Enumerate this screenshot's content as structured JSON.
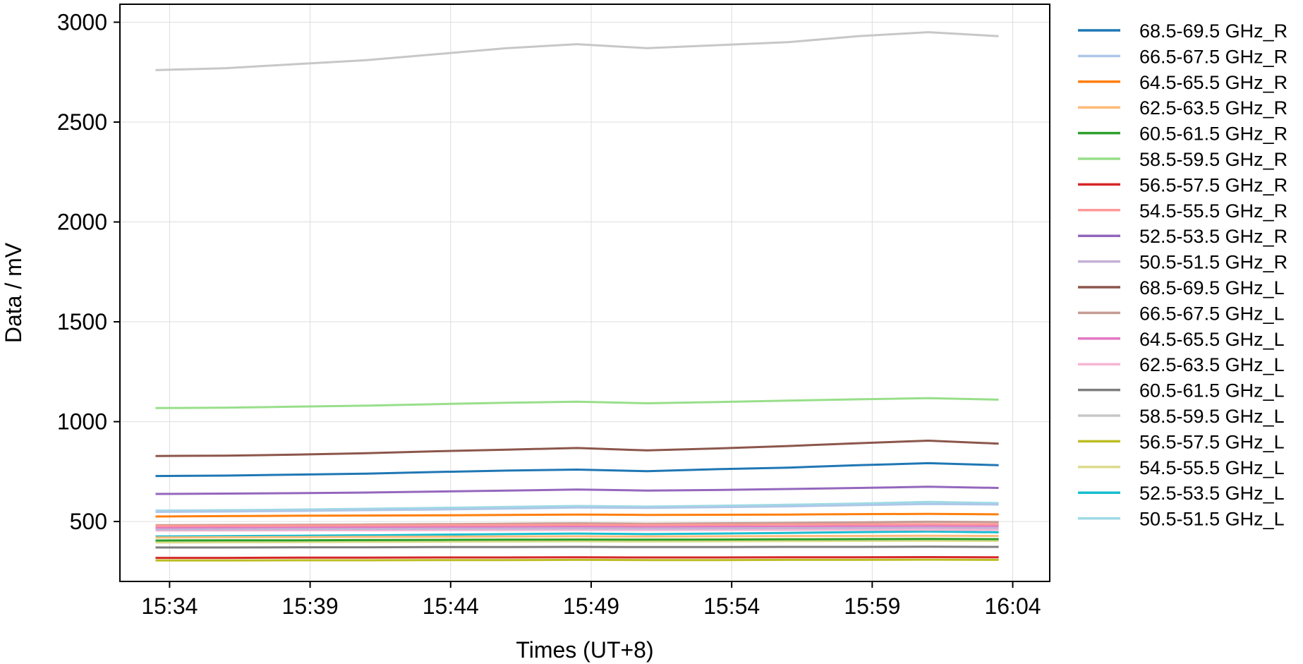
{
  "chart_data": {
    "type": "line",
    "title": "",
    "xlabel": "Times (UT+8)",
    "ylabel": "Data / mV",
    "x_tick_labels": [
      "15:34",
      "15:39",
      "15:44",
      "15:49",
      "15:54",
      "15:59",
      "16:04"
    ],
    "x_range_minutes": [
      "15:32:14",
      "16:05:19"
    ],
    "y_ticks": [
      500,
      1000,
      1500,
      2000,
      2500,
      3000
    ],
    "ylim": [
      200,
      3090
    ],
    "grid": true,
    "legend_position": "outside-right",
    "x": [
      "15:33:30",
      "15:36:00",
      "15:38:30",
      "15:41:00",
      "15:43:30",
      "15:46:00",
      "15:48:30",
      "15:51:00",
      "15:53:30",
      "15:56:00",
      "15:58:30",
      "16:01:00",
      "16:03:30"
    ],
    "series": [
      {
        "name": "68.5-69.5 GHz_R",
        "color": "#1f77b4",
        "values": [
          728,
          730,
          735,
          740,
          748,
          755,
          760,
          752,
          762,
          770,
          782,
          792,
          782
        ]
      },
      {
        "name": "66.5-67.5 GHz_R",
        "color": "#aec7e8",
        "values": [
          548,
          550,
          553,
          557,
          560,
          565,
          570,
          568,
          572,
          576,
          582,
          588,
          585
        ]
      },
      {
        "name": "64.5-65.5 GHz_R",
        "color": "#ff7f0e",
        "values": [
          525,
          527,
          529,
          530,
          531,
          533,
          535,
          533,
          534,
          535,
          537,
          538,
          536
        ]
      },
      {
        "name": "62.5-63.5 GHz_R",
        "color": "#ffbb78",
        "values": [
          420,
          421,
          422,
          423,
          424,
          425,
          426,
          425,
          426,
          427,
          428,
          429,
          428
        ]
      },
      {
        "name": "60.5-61.5 GHz_R",
        "color": "#2ca02c",
        "values": [
          405,
          406,
          406,
          407,
          408,
          409,
          410,
          409,
          410,
          411,
          412,
          413,
          412
        ]
      },
      {
        "name": "58.5-59.5 GHz_R",
        "color": "#98df8a",
        "values": [
          1068,
          1070,
          1075,
          1080,
          1088,
          1095,
          1100,
          1092,
          1098,
          1105,
          1112,
          1118,
          1110
        ]
      },
      {
        "name": "56.5-57.5 GHz_R",
        "color": "#d62728",
        "values": [
          318,
          318,
          319,
          319,
          320,
          320,
          321,
          320,
          320,
          321,
          321,
          322,
          321
        ]
      },
      {
        "name": "54.5-55.5 GHz_R",
        "color": "#ff9896",
        "values": [
          478,
          479,
          480,
          481,
          482,
          483,
          484,
          483,
          484,
          485,
          486,
          487,
          486
        ]
      },
      {
        "name": "52.5-53.5 GHz_R",
        "color": "#9467bd",
        "values": [
          638,
          640,
          642,
          645,
          650,
          655,
          660,
          655,
          658,
          663,
          668,
          674,
          668
        ]
      },
      {
        "name": "50.5-51.5 GHz_R",
        "color": "#c5b0d5",
        "values": [
          460,
          461,
          462,
          463,
          464,
          465,
          466,
          465,
          466,
          467,
          468,
          469,
          468
        ]
      },
      {
        "name": "68.5-69.5 GHz_L",
        "color": "#8c564b",
        "values": [
          828,
          830,
          835,
          842,
          852,
          860,
          868,
          856,
          866,
          878,
          892,
          905,
          890
        ]
      },
      {
        "name": "66.5-67.5 GHz_L",
        "color": "#c49c94",
        "values": [
          482,
          483,
          484,
          485,
          487,
          489,
          491,
          489,
          491,
          493,
          496,
          499,
          497
        ]
      },
      {
        "name": "64.5-65.5 GHz_L",
        "color": "#e377c2",
        "values": [
          468,
          469,
          470,
          471,
          472,
          473,
          474,
          473,
          474,
          475,
          476,
          477,
          476
        ]
      },
      {
        "name": "62.5-63.5 GHz_L",
        "color": "#f7b6d2",
        "values": [
          455,
          455,
          456,
          456,
          457,
          457,
          458,
          457,
          458,
          458,
          459,
          459,
          458
        ]
      },
      {
        "name": "60.5-61.5 GHz_L",
        "color": "#7f7f7f",
        "values": [
          370,
          370,
          371,
          371,
          372,
          372,
          373,
          372,
          372,
          373,
          373,
          374,
          373
        ]
      },
      {
        "name": "58.5-59.5 GHz_L",
        "color": "#c7c7c7",
        "values": [
          2760,
          2770,
          2790,
          2810,
          2840,
          2870,
          2890,
          2870,
          2885,
          2900,
          2930,
          2950,
          2930
        ]
      },
      {
        "name": "56.5-57.5 GHz_L",
        "color": "#bcbd22",
        "values": [
          305,
          305,
          306,
          306,
          307,
          307,
          308,
          307,
          307,
          308,
          308,
          309,
          308
        ]
      },
      {
        "name": "54.5-55.5 GHz_L",
        "color": "#dbdb8d",
        "values": [
          395,
          396,
          397,
          398,
          399,
          400,
          401,
          400,
          401,
          402,
          403,
          404,
          403
        ]
      },
      {
        "name": "52.5-53.5 GHz_L",
        "color": "#17becf",
        "values": [
          425,
          427,
          429,
          431,
          434,
          437,
          440,
          437,
          440,
          443,
          447,
          450,
          446
        ]
      },
      {
        "name": "50.5-51.5 GHz_L",
        "color": "#9edae5",
        "values": [
          555,
          557,
          560,
          564,
          568,
          573,
          578,
          575,
          579,
          584,
          590,
          598,
          592
        ]
      }
    ]
  }
}
